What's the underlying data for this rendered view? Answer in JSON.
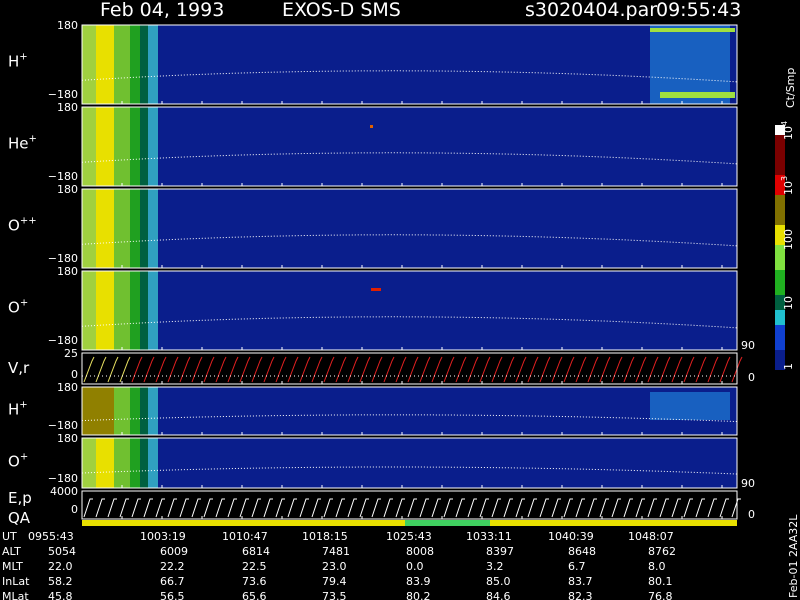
{
  "header": {
    "date": "Feb 04, 1993",
    "instrument": "EXOS-D SMS",
    "file": "s3020404.par",
    "time": "09:55:43"
  },
  "panels": [
    {
      "label": "H",
      "sup": "+",
      "ticks": [
        "180",
        "−180"
      ]
    },
    {
      "label": "He",
      "sup": "+",
      "ticks": [
        "180",
        "−180"
      ]
    },
    {
      "label": "O",
      "sup": "++",
      "ticks": [
        "180",
        "−180"
      ]
    },
    {
      "label": "O",
      "sup": "+",
      "ticks": [
        "180",
        "−180"
      ]
    },
    {
      "label": "V,r",
      "ticks": [
        "25",
        "0"
      ],
      "right_ticks": [
        "90",
        "0"
      ]
    },
    {
      "label": "H",
      "sup": "+",
      "ticks": [
        "180",
        "−180"
      ]
    },
    {
      "label": "O",
      "sup": "+",
      "ticks": [
        "180",
        "−180"
      ],
      "right_ticks": [
        "90"
      ]
    },
    {
      "label": "E,p",
      "label2": "QA",
      "ticks": [
        "4000",
        "0"
      ],
      "right_ticks": [
        "0"
      ]
    }
  ],
  "colorbar": {
    "unit": "Ct/Smp",
    "ticks": [
      {
        "base": "10",
        "sup": "4"
      },
      {
        "base": "10",
        "sup": "3"
      },
      {
        "base": "100"
      },
      {
        "base": "10"
      },
      {
        "base": "1"
      }
    ]
  },
  "ephemeris": {
    "rows": [
      {
        "name": "UT",
        "values": [
          "0955:43",
          "1003:19",
          "1010:47",
          "1018:15",
          "1025:43",
          "1033:11",
          "1040:39",
          "1048:07"
        ]
      },
      {
        "name": "ALT",
        "values": [
          "5054",
          "6009",
          "6814",
          "7481",
          "8008",
          "8397",
          "8648",
          "8762"
        ]
      },
      {
        "name": "MLT",
        "values": [
          "22.0",
          "22.2",
          "22.5",
          "23.0",
          "0.0",
          "3.2",
          "6.7",
          "8.0"
        ]
      },
      {
        "name": "InLat",
        "values": [
          "58.2",
          "66.7",
          "73.6",
          "79.4",
          "83.9",
          "85.0",
          "83.7",
          "80.1"
        ]
      },
      {
        "name": "MLat",
        "values": [
          "45.8",
          "56.5",
          "65.6",
          "73.5",
          "80.2",
          "84.6",
          "82.3",
          "76.8"
        ]
      }
    ]
  },
  "footer": "Feb-01 2AA32L"
}
